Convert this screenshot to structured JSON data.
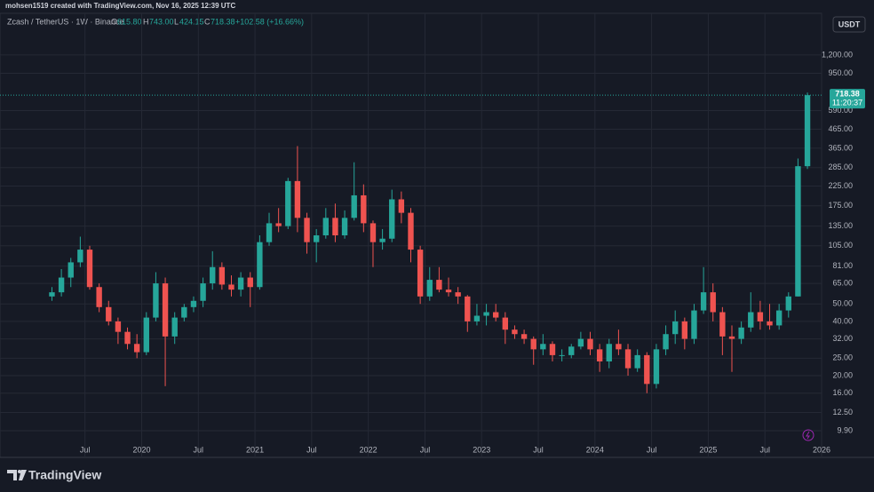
{
  "header": {
    "credit": "mohsen1519 created with TradingView.com, Nov 16, 2025 12:39 UTC"
  },
  "legend": {
    "symbol": "Zcash / TetherUS · 1W · Binance",
    "o_label": "O",
    "o_value": "615.80",
    "h_label": "H",
    "h_value": "743.00",
    "l_label": "L",
    "l_value": "424.15",
    "c_label": "C",
    "c_value": "718.38",
    "change": "+102.58 (+16.66%)"
  },
  "currency_button": "USDT",
  "countdown": "11:20:37",
  "brand": "TradingView",
  "chart_data": {
    "type": "candlestick",
    "x": [
      "2019-03",
      "2019-04",
      "2019-05",
      "2019-06",
      "2019-07",
      "2019-08",
      "2019-09",
      "2019-10",
      "2019-11",
      "2019-12",
      "2020-01",
      "2020-02",
      "2020-03",
      "2020-04",
      "2020-05",
      "2020-06",
      "2020-07",
      "2020-08",
      "2020-09",
      "2020-10",
      "2020-11",
      "2020-12",
      "2021-01",
      "2021-02",
      "2021-03",
      "2021-04",
      "2021-05",
      "2021-06",
      "2021-07",
      "2021-08",
      "2021-09",
      "2021-10",
      "2021-11",
      "2021-12",
      "2022-01",
      "2022-02",
      "2022-03",
      "2022-04",
      "2022-05",
      "2022-06",
      "2022-07",
      "2022-08",
      "2022-09",
      "2022-10",
      "2022-11",
      "2022-12",
      "2023-01",
      "2023-02",
      "2023-03",
      "2023-04",
      "2023-05",
      "2023-06",
      "2023-07",
      "2023-08",
      "2023-09",
      "2023-10",
      "2023-11",
      "2023-12",
      "2024-01",
      "2024-02",
      "2024-03",
      "2024-04",
      "2024-05",
      "2024-06",
      "2024-07",
      "2024-08",
      "2024-09",
      "2024-10",
      "2024-11",
      "2024-12",
      "2025-01",
      "2025-02",
      "2025-03",
      "2025-04",
      "2025-05",
      "2025-06",
      "2025-07",
      "2025-08",
      "2025-09",
      "2025-10",
      "2025-11"
    ],
    "open": [
      55,
      58,
      70,
      85,
      100,
      62,
      48,
      40,
      35,
      30,
      27,
      42,
      65,
      33,
      42,
      48,
      52,
      65,
      80,
      64,
      60,
      70,
      62,
      110,
      140,
      135,
      240,
      150,
      110,
      120,
      150,
      120,
      150,
      200,
      140,
      110,
      115,
      190,
      160,
      100,
      55,
      68,
      60,
      58,
      55,
      40,
      43,
      45,
      42,
      36,
      34,
      32,
      28,
      30,
      26,
      26,
      29,
      32,
      28,
      24,
      30,
      28,
      22,
      26,
      18,
      28,
      34,
      40,
      32,
      46,
      58,
      45,
      33,
      32,
      37,
      45,
      40,
      38,
      46,
      55,
      290
    ],
    "high": [
      62,
      78,
      90,
      118,
      105,
      65,
      52,
      42,
      37,
      34,
      45,
      75,
      70,
      45,
      50,
      55,
      70,
      98,
      85,
      72,
      75,
      75,
      120,
      160,
      170,
      250,
      375,
      160,
      130,
      170,
      180,
      165,
      305,
      230,
      145,
      130,
      215,
      210,
      170,
      105,
      80,
      80,
      70,
      62,
      56,
      50,
      50,
      50,
      45,
      38,
      36,
      33,
      34,
      31,
      28,
      30,
      35,
      35,
      30,
      32,
      36,
      30,
      28,
      27,
      30,
      38,
      46,
      42,
      50,
      80,
      65,
      48,
      38,
      40,
      58,
      52,
      50,
      50,
      58,
      320,
      743
    ],
    "low": [
      52,
      55,
      62,
      80,
      60,
      45,
      38,
      30,
      28,
      25,
      26,
      40,
      17.5,
      30,
      40,
      45,
      48,
      60,
      60,
      55,
      55,
      48,
      60,
      105,
      125,
      130,
      125,
      95,
      85,
      115,
      110,
      115,
      145,
      125,
      80,
      100,
      110,
      140,
      85,
      50,
      52,
      58,
      55,
      50,
      35,
      38,
      38,
      40,
      30,
      32,
      30,
      23,
      26,
      24,
      24,
      25,
      28,
      26,
      21,
      22,
      26,
      20,
      21,
      16,
      17,
      26,
      30,
      28,
      30,
      44,
      40,
      26,
      21,
      30,
      35,
      36,
      36,
      36,
      42,
      55,
      280
    ],
    "close": [
      58,
      70,
      85,
      100,
      62,
      48,
      40,
      35,
      30,
      27,
      42,
      65,
      33,
      42,
      48,
      52,
      65,
      80,
      64,
      60,
      70,
      62,
      110,
      140,
      135,
      240,
      150,
      110,
      120,
      150,
      120,
      150,
      200,
      140,
      110,
      115,
      190,
      160,
      100,
      55,
      68,
      60,
      58,
      55,
      40,
      43,
      45,
      42,
      36,
      34,
      32,
      28,
      30,
      26,
      26,
      29,
      32,
      28,
      24,
      30,
      28,
      22,
      26,
      18,
      28,
      34,
      40,
      32,
      46,
      58,
      45,
      33,
      32,
      37,
      45,
      40,
      38,
      46,
      55,
      290,
      718.38
    ],
    "up_color": "#26a69a",
    "down_color": "#ef5350",
    "log_scale": true,
    "grid": true,
    "ylim": [
      7.05,
      1930
    ],
    "yticks": [
      {
        "value": 9.9,
        "label": "9.90"
      },
      {
        "value": 12.5,
        "label": "12.50"
      },
      {
        "value": 16,
        "label": "16.00"
      },
      {
        "value": 20,
        "label": "20.00"
      },
      {
        "value": 25,
        "label": "25.00"
      },
      {
        "value": 32,
        "label": "32.00"
      },
      {
        "value": 40,
        "label": "40.00"
      },
      {
        "value": 50,
        "label": "50.00"
      },
      {
        "value": 65,
        "label": "65.00"
      },
      {
        "value": 81,
        "label": "81.00"
      },
      {
        "value": 105,
        "label": "105.00"
      },
      {
        "value": 135,
        "label": "135.00"
      },
      {
        "value": 175,
        "label": "175.00"
      },
      {
        "value": 225,
        "label": "225.00"
      },
      {
        "value": 285,
        "label": "285.00"
      },
      {
        "value": 365,
        "label": "365.00"
      },
      {
        "value": 465,
        "label": "465.00"
      },
      {
        "value": 590,
        "label": "590.00"
      },
      {
        "value": 950,
        "label": "950.00"
      },
      {
        "value": 1200,
        "label": "1,200.00"
      }
    ],
    "xlim": [
      "2018-10",
      "2026-01"
    ],
    "xticks": [
      {
        "value": "2019-07",
        "label": "Jul"
      },
      {
        "value": "2020-01",
        "label": "2020"
      },
      {
        "value": "2020-07",
        "label": "Jul"
      },
      {
        "value": "2021-01",
        "label": "2021"
      },
      {
        "value": "2021-07",
        "label": "Jul"
      },
      {
        "value": "2022-01",
        "label": "2022"
      },
      {
        "value": "2022-07",
        "label": "Jul"
      },
      {
        "value": "2023-01",
        "label": "2023"
      },
      {
        "value": "2023-07",
        "label": "Jul"
      },
      {
        "value": "2024-01",
        "label": "2024"
      },
      {
        "value": "2024-07",
        "label": "Jul"
      },
      {
        "value": "2025-01",
        "label": "2025"
      },
      {
        "value": "2025-07",
        "label": "Jul"
      },
      {
        "value": "2026-01",
        "label": "2026"
      }
    ]
  }
}
